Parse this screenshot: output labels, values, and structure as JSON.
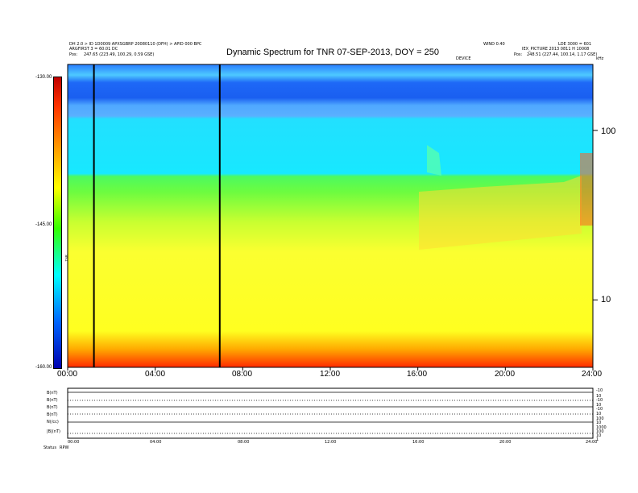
{
  "header": {
    "left_line1": "DH 2.0 > ID 1D0009 APXSGBRP 20080110 (DFH) > APID 000 BPC",
    "left_line2": "ARGFIRST 3 = 60.01 DC",
    "left_line3_label": "Pos:",
    "left_line3_value": "247.65 (223.49, 100.29, 0.59 GSE)",
    "right_line1_a": "WIND 0.40",
    "right_line1_b": "LDE 3000 = 601",
    "right_line2": "IEX_PICTURE 2013 0811 H 10008",
    "right_line3_label": "Pos:",
    "right_line3_value": "248.51 (227.44, 100.14, 1.17 GSE)",
    "center_small": "DEVICE",
    "top_right_small": "kHz"
  },
  "chart_data": {
    "type": "heatmap",
    "title": "Dynamic Spectrum for TNR 07-SEP-2013, DOY = 250",
    "x_ticks": [
      "00:00",
      "04:00",
      "08:00",
      "12:00",
      "16:00",
      "20:00",
      "24:00"
    ],
    "x_range_hours": [
      0,
      24
    ],
    "y_scale": "log",
    "y_ticks": [
      "100",
      "10"
    ],
    "y_range_khz": [
      4,
      245
    ],
    "colorbar": {
      "ticks": [
        "-130.00",
        "-145.00",
        "-160.00"
      ],
      "range": [
        -160,
        -130
      ],
      "label": "TNR",
      "colors": [
        "#c00000",
        "#ff3300",
        "#ff9900",
        "#ffff00",
        "#33ff00",
        "#00ffff",
        "#0066ff",
        "#0000b0"
      ]
    },
    "vertical_markers_hours": [
      1.2,
      6.95
    ],
    "bands": [
      {
        "name": "upper-blue",
        "khz_from": 120,
        "khz_to": 245,
        "color": "#1a6fff"
      },
      {
        "name": "cyan",
        "khz_from": 50,
        "khz_to": 120,
        "color": "#19e8ff"
      },
      {
        "name": "green",
        "khz_from": 30,
        "khz_to": 50,
        "color": "#8cff3c"
      },
      {
        "name": "yellow",
        "khz_from": 5.5,
        "khz_to": 30,
        "color": "#ffff33"
      },
      {
        "name": "red-bottom",
        "khz_from": 4,
        "khz_to": 5.5,
        "color": "#ff4a00"
      }
    ],
    "lower_panels": {
      "left_labels": [
        "B(nT)",
        "B(nT)",
        "B(nT)",
        "B(nT)",
        "N(/cc)",
        "|B|(nT)"
      ],
      "right_values": [
        "-10",
        "10",
        "-10",
        "10",
        "-10",
        "10",
        "100",
        "10",
        "1000",
        "100",
        "10",
        "1"
      ],
      "x_ticks": [
        "00:00",
        "04:00",
        "08:00",
        "12:00",
        "16:00",
        "20:00",
        "24:00"
      ],
      "footer_label": "Status",
      "footer_value": "RPW"
    }
  }
}
